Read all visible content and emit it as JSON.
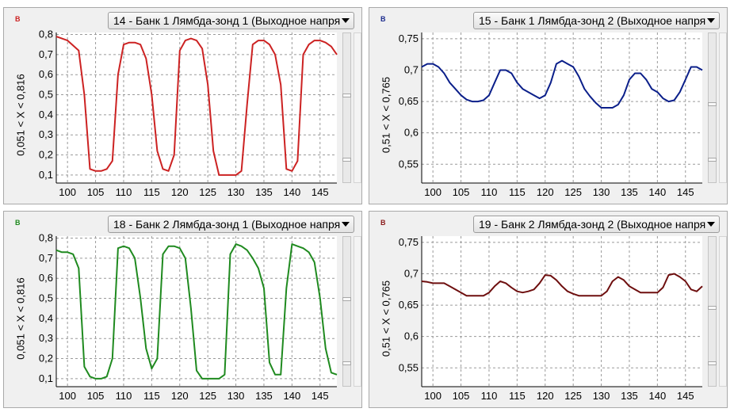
{
  "panels": [
    {
      "unit": "В",
      "unit_color": "#cc2222",
      "selector": "14 - Банк 1 Лямбда-зонд 1 (Выходное напря",
      "axis_label": "0,051  < X <  0,816",
      "thumb_level": 0.42,
      "chart_data": {
        "type": "line",
        "xlim": [
          98,
          148
        ],
        "ylim": [
          0.06,
          0.81
        ],
        "xticks": [
          "100",
          "105",
          "110",
          "115",
          "120",
          "125",
          "130",
          "135",
          "140",
          "145"
        ],
        "yticks": [
          "0,8",
          "0,7",
          "0,6",
          "0,5",
          "0,4",
          "0,3",
          "0,2",
          "0,1"
        ],
        "grid": true,
        "series": [
          {
            "color": "#cc2222",
            "x": [
              98,
              100,
              102,
              103,
              104,
              105,
              106,
              107,
              108,
              109,
              110,
              111,
              112,
              113,
              114,
              115,
              116,
              117,
              118,
              119,
              120,
              121,
              122,
              123,
              124,
              125,
              126,
              127,
              128,
              129,
              130,
              131,
              132,
              133,
              134,
              135,
              136,
              137,
              138,
              139,
              140,
              141,
              142,
              143,
              144,
              145,
              146,
              147,
              148
            ],
            "y": [
              0.79,
              0.77,
              0.72,
              0.5,
              0.13,
              0.12,
              0.12,
              0.13,
              0.17,
              0.6,
              0.75,
              0.76,
              0.76,
              0.75,
              0.68,
              0.5,
              0.22,
              0.13,
              0.12,
              0.2,
              0.72,
              0.77,
              0.78,
              0.77,
              0.73,
              0.55,
              0.22,
              0.1,
              0.1,
              0.1,
              0.1,
              0.12,
              0.45,
              0.75,
              0.77,
              0.77,
              0.75,
              0.7,
              0.55,
              0.13,
              0.12,
              0.17,
              0.7,
              0.75,
              0.77,
              0.77,
              0.76,
              0.74,
              0.7
            ]
          }
        ]
      }
    },
    {
      "unit": "В",
      "unit_color": "#1a2a8c",
      "selector": "15 - Банк 1 Лямбда-зонд 2 (Выходное напря",
      "axis_label": "0,51  < X <  0,765",
      "thumb_level": 0.48,
      "chart_data": {
        "type": "line",
        "xlim": [
          98,
          148
        ],
        "ylim": [
          0.52,
          0.76
        ],
        "xticks": [
          "100",
          "105",
          "110",
          "115",
          "120",
          "125",
          "130",
          "135",
          "140",
          "145"
        ],
        "yticks": [
          "0,75",
          "0,7",
          "0,65",
          "0,6",
          "0,55"
        ],
        "grid": true,
        "series": [
          {
            "color": "#0b1f8a",
            "x": [
              98,
              99,
              100,
              101,
              102,
              103,
              104,
              105,
              106,
              107,
              108,
              109,
              110,
              111,
              112,
              113,
              114,
              115,
              116,
              117,
              118,
              119,
              120,
              121,
              122,
              123,
              124,
              125,
              126,
              127,
              128,
              129,
              130,
              131,
              132,
              133,
              134,
              135,
              136,
              137,
              138,
              139,
              140,
              141,
              142,
              143,
              144,
              145,
              146,
              147,
              148
            ],
            "y": [
              0.705,
              0.71,
              0.71,
              0.705,
              0.695,
              0.68,
              0.67,
              0.66,
              0.653,
              0.65,
              0.65,
              0.652,
              0.66,
              0.68,
              0.7,
              0.7,
              0.695,
              0.68,
              0.67,
              0.665,
              0.66,
              0.655,
              0.66,
              0.68,
              0.71,
              0.715,
              0.71,
              0.705,
              0.69,
              0.67,
              0.658,
              0.648,
              0.64,
              0.64,
              0.64,
              0.645,
              0.66,
              0.685,
              0.695,
              0.695,
              0.685,
              0.67,
              0.665,
              0.655,
              0.65,
              0.652,
              0.665,
              0.685,
              0.705,
              0.705,
              0.7
            ]
          }
        ]
      }
    },
    {
      "unit": "В",
      "unit_color": "#1f8a1f",
      "selector": "18 - Банк 2 Лямбда-зонд 1 (Выходное напря",
      "axis_label": "0,051  < X <  0,816",
      "thumb_level": 0.42,
      "chart_data": {
        "type": "line",
        "xlim": [
          98,
          148
        ],
        "ylim": [
          0.06,
          0.81
        ],
        "xticks": [
          "100",
          "105",
          "110",
          "115",
          "120",
          "125",
          "130",
          "135",
          "140",
          "145"
        ],
        "yticks": [
          "0,8",
          "0,7",
          "0,6",
          "0,5",
          "0,4",
          "0,3",
          "0,2",
          "0,1"
        ],
        "grid": true,
        "series": [
          {
            "color": "#1f8a1f",
            "x": [
              98,
              99,
              100,
              101,
              102,
              103,
              104,
              105,
              106,
              107,
              108,
              109,
              110,
              111,
              112,
              113,
              114,
              115,
              116,
              117,
              118,
              119,
              120,
              121,
              122,
              123,
              124,
              125,
              126,
              127,
              128,
              129,
              130,
              131,
              132,
              133,
              134,
              135,
              136,
              137,
              138,
              139,
              140,
              141,
              142,
              143,
              144,
              145,
              146,
              147,
              148
            ],
            "y": [
              0.74,
              0.73,
              0.73,
              0.72,
              0.65,
              0.16,
              0.11,
              0.1,
              0.1,
              0.11,
              0.2,
              0.75,
              0.76,
              0.75,
              0.7,
              0.5,
              0.25,
              0.15,
              0.2,
              0.72,
              0.76,
              0.76,
              0.75,
              0.7,
              0.45,
              0.14,
              0.1,
              0.1,
              0.1,
              0.1,
              0.12,
              0.72,
              0.77,
              0.76,
              0.74,
              0.7,
              0.65,
              0.55,
              0.18,
              0.12,
              0.12,
              0.55,
              0.77,
              0.76,
              0.75,
              0.73,
              0.68,
              0.5,
              0.25,
              0.13,
              0.12
            ]
          }
        ]
      }
    },
    {
      "unit": "В",
      "unit_color": "#8a1a1a",
      "selector": "19 - Банк 2 Лямбда-зонд 2 (Выходное напря",
      "axis_label": "0,51  < X <  0,765",
      "thumb_level": 0.48,
      "chart_data": {
        "type": "line",
        "xlim": [
          98,
          148
        ],
        "ylim": [
          0.52,
          0.76
        ],
        "xticks": [
          "100",
          "105",
          "110",
          "115",
          "120",
          "125",
          "130",
          "135",
          "140",
          "145"
        ],
        "yticks": [
          "0,75",
          "0,7",
          "0,65",
          "0,6",
          "0,55"
        ],
        "grid": true,
        "series": [
          {
            "color": "#6e0f0f",
            "x": [
              98,
              99,
              100,
              101,
              102,
              103,
              104,
              105,
              106,
              107,
              108,
              109,
              110,
              111,
              112,
              113,
              114,
              115,
              116,
              117,
              118,
              119,
              120,
              121,
              122,
              123,
              124,
              125,
              126,
              127,
              128,
              129,
              130,
              131,
              132,
              133,
              134,
              135,
              136,
              137,
              138,
              139,
              140,
              141,
              142,
              143,
              144,
              145,
              146,
              147,
              148
            ],
            "y": [
              0.688,
              0.687,
              0.685,
              0.685,
              0.685,
              0.68,
              0.675,
              0.67,
              0.665,
              0.665,
              0.665,
              0.665,
              0.67,
              0.68,
              0.688,
              0.685,
              0.678,
              0.672,
              0.67,
              0.672,
              0.675,
              0.685,
              0.698,
              0.697,
              0.69,
              0.68,
              0.672,
              0.668,
              0.665,
              0.665,
              0.665,
              0.665,
              0.665,
              0.672,
              0.688,
              0.695,
              0.69,
              0.68,
              0.675,
              0.67,
              0.67,
              0.67,
              0.67,
              0.678,
              0.698,
              0.7,
              0.695,
              0.688,
              0.675,
              0.672,
              0.68
            ]
          }
        ]
      }
    }
  ]
}
